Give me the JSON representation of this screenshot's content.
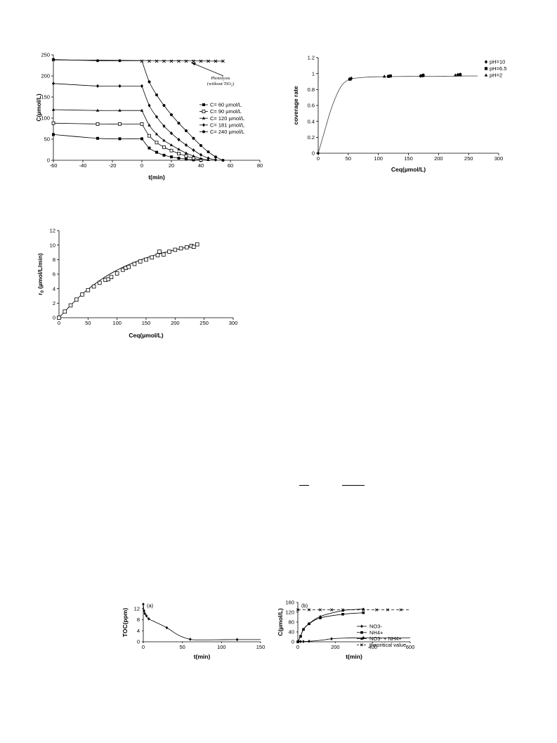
{
  "page": {
    "stray_text": []
  },
  "chart_data": [
    {
      "id": "c1",
      "type": "line",
      "xlabel": "t(min)",
      "ylabel": "C(µmol/L)",
      "xlim": [
        -60,
        80
      ],
      "ylim": [
        0,
        250
      ],
      "xticks": [
        -60,
        -40,
        -20,
        0,
        20,
        40,
        60,
        80
      ],
      "yticks": [
        0,
        50,
        100,
        150,
        200,
        250
      ],
      "legend_position": "center-right",
      "annotation": {
        "lines": [
          "Photolysis",
          "(without TiO",
          ")"
        ],
        "subscript": "2"
      },
      "series": [
        {
          "name": "C= 60 µmol/L",
          "marker": "square",
          "x": [
            -60,
            -30,
            -15,
            0,
            5,
            10,
            15,
            20,
            25,
            30,
            35,
            40
          ],
          "y": [
            61,
            52,
            51,
            51,
            29,
            19,
            12,
            8,
            5,
            3,
            1,
            0
          ]
        },
        {
          "name": "C= 90 µmol/L",
          "marker": "square-open",
          "x": [
            -60,
            -30,
            -15,
            0,
            5,
            10,
            15,
            20,
            25,
            30,
            35,
            40
          ],
          "y": [
            88,
            86,
            86,
            86,
            58,
            42,
            31,
            23,
            16,
            10,
            5,
            1
          ]
        },
        {
          "name": "C= 120 µmol/L",
          "marker": "triangle",
          "x": [
            -60,
            -30,
            -15,
            0,
            5,
            10,
            15,
            20,
            25,
            30,
            35,
            40,
            45
          ],
          "y": [
            120,
            118,
            118,
            118,
            83,
            62,
            47,
            36,
            26,
            17,
            10,
            4,
            1
          ]
        },
        {
          "name": "C= 181 µmol/L",
          "marker": "diamond",
          "x": [
            -60,
            -30,
            -15,
            0,
            5,
            10,
            15,
            20,
            25,
            30,
            35,
            40,
            45,
            50
          ],
          "y": [
            182,
            176,
            176,
            176,
            130,
            103,
            81,
            64,
            49,
            36,
            24,
            13,
            5,
            1
          ]
        },
        {
          "name": "C= 240 µmol/L",
          "marker": "circle",
          "x": [
            -60,
            -30,
            -15,
            5,
            10,
            15,
            20,
            25,
            30,
            35,
            40,
            45,
            50,
            55
          ],
          "y": [
            239,
            236,
            236,
            186,
            155,
            130,
            108,
            88,
            70,
            52,
            35,
            20,
            8,
            0
          ]
        },
        {
          "name": "",
          "marker": "x",
          "x": [
            -60,
            0,
            5,
            10,
            15,
            20,
            25,
            30,
            35,
            40,
            45,
            50,
            55
          ],
          "y": [
            238,
            235,
            235,
            235,
            235,
            235,
            235,
            235,
            235,
            235,
            235,
            235,
            235
          ]
        }
      ]
    },
    {
      "id": "c2",
      "type": "scatter",
      "xlabel": "Ceq(µmol/L)",
      "ylabel": "coverage rate",
      "xlim": [
        0,
        300
      ],
      "ylim": [
        0,
        1.2
      ],
      "xticks": [
        0,
        50,
        100,
        150,
        200,
        250,
        300
      ],
      "yticks": [
        0,
        0.2,
        0.4,
        0.6,
        0.8,
        1,
        1.2
      ],
      "legend_position": "top-right",
      "fit_curve": {
        "x": [
          0,
          10,
          20,
          30,
          40,
          50,
          60,
          80,
          100,
          150,
          200,
          250,
          265
        ],
        "y": [
          0,
          0.26,
          0.52,
          0.72,
          0.86,
          0.92,
          0.94,
          0.955,
          0.96,
          0.965,
          0.965,
          0.97,
          0.97
        ]
      },
      "series": [
        {
          "name": "pH=10",
          "marker": "diamond",
          "x": [
            0,
            52,
            55,
            170,
            173,
            175,
            232,
            236
          ],
          "y": [
            0,
            0.93,
            0.94,
            0.97,
            0.975,
            0.98,
            0.985,
            0.99
          ]
        },
        {
          "name": "pH=6.5",
          "marker": "square",
          "x": [
            53,
            117,
            120,
            174,
            236
          ],
          "y": [
            0.93,
            0.965,
            0.97,
            0.975,
            0.985
          ]
        },
        {
          "name": "pH=2",
          "marker": "triangle",
          "x": [
            110,
            170,
            228
          ],
          "y": [
            0.965,
            0.975,
            0.98
          ]
        }
      ]
    },
    {
      "id": "c3",
      "type": "scatter",
      "xlabel": "Ceq(µmol/L)",
      "ylabel": "r0 (µmol/L/min)",
      "ylabel_main": "r",
      "ylabel_sub": "0",
      "ylabel_rest": " (µmol/L/min)",
      "xlim": [
        0,
        300
      ],
      "ylim": [
        0,
        12
      ],
      "xticks": [
        0,
        50,
        100,
        150,
        200,
        250,
        300
      ],
      "yticks": [
        0,
        2,
        4,
        6,
        8,
        10,
        12
      ],
      "fit_curve": {
        "x": [
          0,
          20,
          40,
          60,
          80,
          100,
          120,
          140,
          160,
          180,
          200,
          220,
          240
        ],
        "y": [
          0,
          1.7,
          3.25,
          4.55,
          5.65,
          6.55,
          7.3,
          7.95,
          8.5,
          8.95,
          9.35,
          9.7,
          10.0
        ]
      },
      "series": [
        {
          "name": "",
          "marker": "square-open",
          "x": [
            0,
            10,
            20,
            30,
            40,
            50,
            60,
            70,
            80,
            85,
            90,
            100,
            110,
            115,
            120,
            130,
            140,
            150,
            160,
            170,
            173,
            180,
            190,
            200,
            210,
            220,
            228,
            232,
            238
          ],
          "y": [
            0,
            0.85,
            1.7,
            2.5,
            3.2,
            3.8,
            4.3,
            4.8,
            5.2,
            5.3,
            5.6,
            6.1,
            6.6,
            6.85,
            7.0,
            7.4,
            7.75,
            8.0,
            8.3,
            8.6,
            9.1,
            8.7,
            9.1,
            9.35,
            9.55,
            9.7,
            9.9,
            9.75,
            10.1
          ]
        }
      ]
    },
    {
      "id": "c4",
      "type": "line",
      "panel_label": "(a)",
      "xlabel": "t(min)",
      "ylabel": "TOC(ppm)",
      "xlim": [
        0,
        150
      ],
      "ylim": [
        0,
        14
      ],
      "xticks": [
        0,
        50,
        100,
        150
      ],
      "yticks": [
        0,
        4,
        8,
        12
      ],
      "series": [
        {
          "name": "",
          "marker": "diamond",
          "x": [
            0,
            1,
            2,
            4,
            7,
            30,
            60,
            120
          ],
          "y": [
            13.6,
            11.2,
            10.2,
            9.4,
            8.3,
            5.1,
            0.9,
            0.8
          ],
          "curve_x": [
            0,
            1,
            2,
            4,
            7,
            15,
            30,
            45,
            60,
            75,
            100,
            120,
            150
          ],
          "curve_y": [
            13.6,
            11.2,
            10.2,
            9.4,
            8.3,
            7.2,
            5.1,
            2.4,
            0.9,
            0.7,
            0.75,
            0.8,
            0.8
          ]
        }
      ]
    },
    {
      "id": "c5",
      "type": "line",
      "panel_label": "(b)",
      "xlabel": "t(min)",
      "ylabel": "C(µmol/L)",
      "xlim": [
        0,
        600
      ],
      "ylim": [
        0,
        160
      ],
      "xticks": [
        0,
        200,
        400,
        600
      ],
      "yticks": [
        0,
        40,
        80,
        120,
        160
      ],
      "legend_position": "center-right",
      "series": [
        {
          "name": "NO3-",
          "marker": "diamond",
          "dash": false,
          "x": [
            0,
            5,
            15,
            30,
            60,
            180,
            350
          ],
          "y": [
            0,
            1,
            1,
            1,
            2,
            12,
            16
          ],
          "curve_x": [
            0,
            15,
            60,
            120,
            180,
            250,
            350,
            450,
            600
          ],
          "curve_y": [
            0,
            1,
            2,
            6,
            12,
            15,
            16,
            16,
            16
          ]
        },
        {
          "name": "NH4+",
          "marker": "square",
          "dash": false,
          "x": [
            0,
            15,
            30,
            60,
            120,
            240,
            350
          ],
          "y": [
            0,
            22,
            50,
            73,
            97,
            112,
            118
          ],
          "curve_x": [
            0,
            15,
            30,
            60,
            120,
            240,
            350
          ],
          "curve_y": [
            0,
            22,
            50,
            73,
            97,
            112,
            118
          ]
        },
        {
          "name": "NO3- + NH4+",
          "marker": "triangle",
          "dash": false,
          "x": [
            0,
            15,
            30,
            60,
            120,
            240,
            350
          ],
          "y": [
            0,
            23,
            51,
            74,
            103,
            127,
            133
          ],
          "curve_x": [
            0,
            15,
            30,
            60,
            120,
            240,
            300,
            350
          ],
          "curve_y": [
            0,
            23,
            51,
            74,
            103,
            127,
            131,
            133
          ]
        },
        {
          "name": "theoritical value",
          "marker": "x",
          "dash": true,
          "x": [
            0,
            60,
            120,
            180,
            240,
            350,
            420,
            480,
            550
          ],
          "y": [
            130,
            130,
            130,
            130,
            130,
            130,
            130,
            130,
            130
          ],
          "curve_x": [
            0,
            600
          ],
          "curve_y": [
            130,
            130
          ]
        }
      ]
    }
  ]
}
